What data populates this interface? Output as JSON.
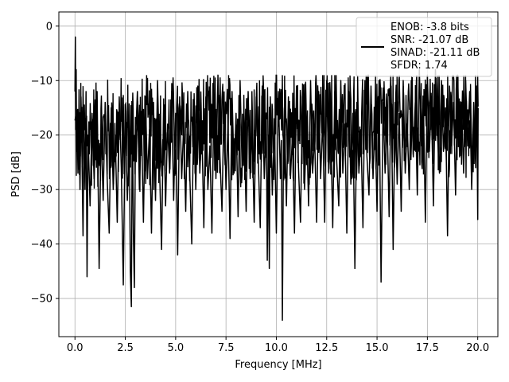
{
  "chart_data": {
    "type": "line",
    "xlabel": "Frequency [MHz]",
    "ylabel": "PSD [dB]",
    "xlim": [
      -0.8,
      21.0
    ],
    "ylim": [
      -57.0,
      2.6
    ],
    "xticks": [
      0.0,
      2.5,
      5.0,
      7.5,
      10.0,
      12.5,
      15.0,
      17.5,
      20.0
    ],
    "xtick_labels": [
      "0.0",
      "2.5",
      "5.0",
      "7.5",
      "10.0",
      "12.5",
      "15.0",
      "17.5",
      "20.0"
    ],
    "yticks": [
      0,
      -10,
      -20,
      -30,
      -40,
      -50
    ],
    "ytick_labels": [
      "0",
      "−10",
      "−20",
      "−30",
      "−40",
      "−50"
    ],
    "grid": true,
    "legend_position": "top-right",
    "series": [
      {
        "legend_lines": [
          "ENOB: -3.8 bits",
          "SNR: -21.07 dB",
          "SINAD: -21.11 dB",
          "SFDR: 1.74"
        ],
        "color": "#000000",
        "points": [
          [
            0.0,
            -12
          ],
          [
            0.02,
            -2
          ],
          [
            0.04,
            -19
          ],
          [
            0.06,
            -8
          ],
          [
            0.08,
            -23
          ],
          [
            0.1,
            -16
          ],
          [
            0.15,
            -27
          ],
          [
            0.2,
            -15
          ],
          [
            0.25,
            -30
          ],
          [
            0.3,
            -13
          ],
          [
            0.35,
            -24
          ],
          [
            0.4,
            -38.5
          ],
          [
            0.45,
            -18
          ],
          [
            0.5,
            -30
          ],
          [
            0.55,
            -12
          ],
          [
            0.6,
            -46
          ],
          [
            0.65,
            -20
          ],
          [
            0.75,
            -33
          ],
          [
            0.85,
            -16
          ],
          [
            0.95,
            -28
          ],
          [
            1.1,
            -12
          ],
          [
            1.2,
            -44.5
          ],
          [
            1.3,
            -18
          ],
          [
            1.4,
            -32
          ],
          [
            1.5,
            -14
          ],
          [
            1.6,
            -28
          ],
          [
            1.7,
            -38
          ],
          [
            1.8,
            -15
          ],
          [
            1.9,
            -30
          ],
          [
            2.0,
            -20
          ],
          [
            2.1,
            -36
          ],
          [
            2.2,
            -13
          ],
          [
            2.3,
            -26
          ],
          [
            2.4,
            -47.5
          ],
          [
            2.5,
            -16
          ],
          [
            2.6,
            -32
          ],
          [
            2.7,
            -20
          ],
          [
            2.75,
            -45
          ],
          [
            2.8,
            -51.5
          ],
          [
            2.85,
            -14
          ],
          [
            2.9,
            -38
          ],
          [
            2.95,
            -48
          ],
          [
            3.0,
            -22
          ],
          [
            3.1,
            -12
          ],
          [
            3.2,
            -30
          ],
          [
            3.3,
            -17
          ],
          [
            3.4,
            -36
          ],
          [
            3.5,
            -13
          ],
          [
            3.6,
            -28
          ],
          [
            3.7,
            -19
          ],
          [
            3.8,
            -38
          ],
          [
            3.9,
            -14
          ],
          [
            4.0,
            -32
          ],
          [
            4.1,
            -10
          ],
          [
            4.2,
            -26
          ],
          [
            4.3,
            -41
          ],
          [
            4.4,
            -15
          ],
          [
            4.5,
            -33
          ],
          [
            4.6,
            -18
          ],
          [
            4.7,
            -27
          ],
          [
            4.8,
            -12
          ],
          [
            4.9,
            -32
          ],
          [
            5.0,
            -16
          ],
          [
            5.1,
            -42
          ],
          [
            5.2,
            -13
          ],
          [
            5.3,
            -28
          ],
          [
            5.4,
            -18
          ],
          [
            5.5,
            -34
          ],
          [
            5.6,
            -12
          ],
          [
            5.7,
            -27
          ],
          [
            5.8,
            -40
          ],
          [
            5.9,
            -15
          ],
          [
            6.0,
            -30
          ],
          [
            6.1,
            -11
          ],
          [
            6.2,
            -27
          ],
          [
            6.3,
            -18
          ],
          [
            6.4,
            -37
          ],
          [
            6.5,
            -13
          ],
          [
            6.6,
            -30
          ],
          [
            6.7,
            -22
          ],
          [
            6.8,
            -38
          ],
          [
            6.9,
            -14
          ],
          [
            7.0,
            -28
          ],
          [
            7.1,
            -9
          ],
          [
            7.2,
            -24
          ],
          [
            7.3,
            -34
          ],
          [
            7.4,
            -14
          ],
          [
            7.5,
            -30
          ],
          [
            7.6,
            -18
          ],
          [
            7.7,
            -39
          ],
          [
            7.8,
            -12
          ],
          [
            7.9,
            -27
          ],
          [
            8.0,
            -16
          ],
          [
            8.1,
            -35
          ],
          [
            8.2,
            -10
          ],
          [
            8.3,
            -26
          ],
          [
            8.4,
            -18
          ],
          [
            8.5,
            -34
          ],
          [
            8.6,
            -12
          ],
          [
            8.7,
            -28
          ],
          [
            8.8,
            -19
          ],
          [
            8.9,
            -36
          ],
          [
            9.0,
            -13
          ],
          [
            9.1,
            -24
          ],
          [
            9.2,
            -37
          ],
          [
            9.3,
            -11
          ],
          [
            9.4,
            -28
          ],
          [
            9.5,
            -17
          ],
          [
            9.55,
            -43
          ],
          [
            9.6,
            -20
          ],
          [
            9.65,
            -44.5
          ],
          [
            9.7,
            -13
          ],
          [
            9.8,
            -31
          ],
          [
            9.9,
            -17
          ],
          [
            10.0,
            -38
          ],
          [
            10.1,
            -12
          ],
          [
            10.2,
            -28
          ],
          [
            10.25,
            -21
          ],
          [
            10.3,
            -54
          ],
          [
            10.35,
            -24
          ],
          [
            10.4,
            -15
          ],
          [
            10.5,
            -33
          ],
          [
            10.6,
            -13
          ],
          [
            10.7,
            -28
          ],
          [
            10.8,
            -20
          ],
          [
            10.9,
            -38
          ],
          [
            11.0,
            -11
          ],
          [
            11.1,
            -26
          ],
          [
            11.2,
            -36
          ],
          [
            11.3,
            -13
          ],
          [
            11.4,
            -30
          ],
          [
            11.5,
            -17
          ],
          [
            11.6,
            -33
          ],
          [
            11.7,
            -10
          ],
          [
            11.8,
            -27
          ],
          [
            11.9,
            -20
          ],
          [
            12.0,
            -36
          ],
          [
            12.1,
            -12
          ],
          [
            12.2,
            -28
          ],
          [
            12.3,
            -17
          ],
          [
            12.4,
            -36
          ],
          [
            12.5,
            -10
          ],
          [
            12.6,
            -27
          ],
          [
            12.7,
            -18
          ],
          [
            12.8,
            -37
          ],
          [
            12.9,
            -12
          ],
          [
            13.0,
            -25
          ],
          [
            13.1,
            -33
          ],
          [
            13.2,
            -10
          ],
          [
            13.3,
            -27
          ],
          [
            13.4,
            -18
          ],
          [
            13.5,
            -38
          ],
          [
            13.6,
            -12
          ],
          [
            13.7,
            -29
          ],
          [
            13.8,
            -16
          ],
          [
            13.9,
            -44.5
          ],
          [
            14.0,
            -14
          ],
          [
            14.1,
            -27
          ],
          [
            14.2,
            -19
          ],
          [
            14.3,
            -37
          ],
          [
            14.4,
            -10
          ],
          [
            14.5,
            -24
          ],
          [
            14.6,
            -31
          ],
          [
            14.7,
            -11
          ],
          [
            14.8,
            -28
          ],
          [
            14.9,
            -17
          ],
          [
            15.0,
            -34
          ],
          [
            15.1,
            -10
          ],
          [
            15.2,
            -47
          ],
          [
            15.3,
            -14
          ],
          [
            15.4,
            -27
          ],
          [
            15.5,
            -17
          ],
          [
            15.6,
            -35
          ],
          [
            15.7,
            -11
          ],
          [
            15.8,
            -41
          ],
          [
            15.9,
            -14
          ],
          [
            16.0,
            -29
          ],
          [
            16.1,
            -16
          ],
          [
            16.2,
            -34
          ],
          [
            16.3,
            -10
          ],
          [
            16.4,
            -27
          ],
          [
            16.5,
            -18
          ],
          [
            16.6,
            -30
          ],
          [
            16.7,
            -10
          ],
          [
            16.8,
            -24
          ],
          [
            16.9,
            -14
          ],
          [
            17.0,
            -31
          ],
          [
            17.1,
            -8
          ],
          [
            17.2,
            -22
          ],
          [
            17.3,
            -13
          ],
          [
            17.4,
            -36
          ],
          [
            17.5,
            -9
          ],
          [
            17.6,
            -23
          ],
          [
            17.7,
            -14
          ],
          [
            17.8,
            -33
          ],
          [
            17.9,
            -8
          ],
          [
            18.0,
            -20
          ],
          [
            18.1,
            -27
          ],
          [
            18.2,
            -10
          ],
          [
            18.3,
            -23
          ],
          [
            18.4,
            -15
          ],
          [
            18.5,
            -38.5
          ],
          [
            18.6,
            -11
          ],
          [
            18.7,
            -22
          ],
          [
            18.8,
            -14
          ],
          [
            18.9,
            -31
          ],
          [
            19.0,
            -9
          ],
          [
            19.1,
            -24
          ],
          [
            19.2,
            -14
          ],
          [
            19.3,
            -27
          ],
          [
            19.4,
            -10
          ],
          [
            19.5,
            -22
          ],
          [
            19.6,
            -12
          ],
          [
            19.7,
            -30
          ],
          [
            19.8,
            -14
          ],
          [
            19.9,
            -26
          ],
          [
            19.95,
            -11
          ],
          [
            20.0,
            -35.5
          ],
          [
            20.02,
            -15
          ]
        ]
      }
    ]
  }
}
